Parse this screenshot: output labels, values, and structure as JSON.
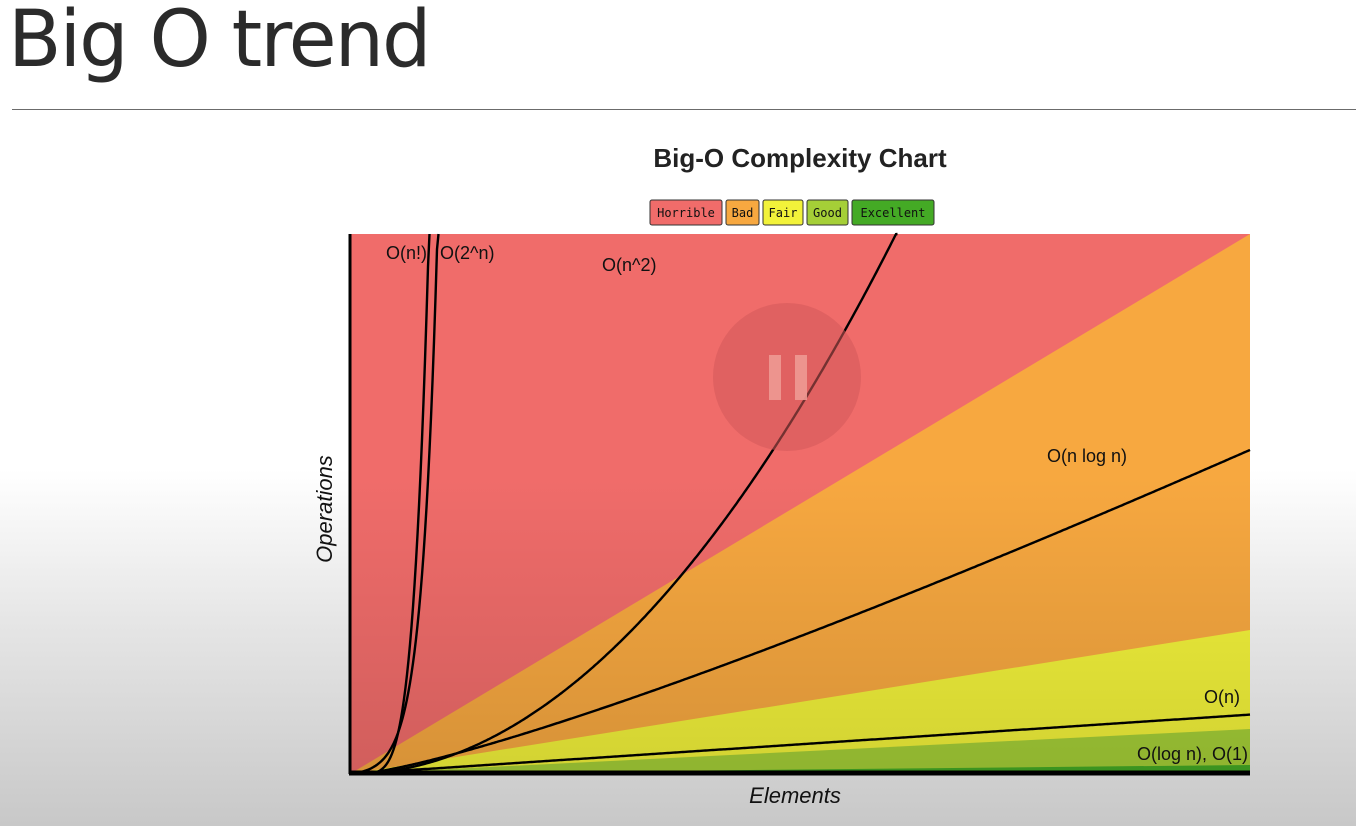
{
  "slide": {
    "title": "Big O trend"
  },
  "chart_data": {
    "type": "area",
    "title": "Big-O Complexity Chart",
    "xlabel": "Elements",
    "ylabel": "Operations",
    "xlim": [
      0,
      100
    ],
    "ylim": [
      0,
      60
    ],
    "grid": false,
    "legend_placement": "top",
    "legend": [
      {
        "label": "Horrible",
        "color": "#f06c6a"
      },
      {
        "label": "Bad",
        "color": "#f7a840"
      },
      {
        "label": "Fair",
        "color": "#f2f23a"
      },
      {
        "label": "Good",
        "color": "#a5cf37"
      },
      {
        "label": "Excellent",
        "color": "#44aa25"
      }
    ],
    "regions": [
      {
        "name": "Horrible",
        "upper_slope": null,
        "color": "#f06c6a"
      },
      {
        "name": "Bad",
        "upper_slope": 0.6,
        "color": "#f7a840"
      },
      {
        "name": "Fair",
        "upper_slope": 0.16,
        "color": "#f2f23a"
      },
      {
        "name": "Good",
        "upper_slope": 0.05,
        "color": "#a5cf37"
      },
      {
        "name": "Excellent",
        "upper_slope": 0.01,
        "color": "#44aa25"
      }
    ],
    "series": [
      {
        "name": "O(n!)",
        "label": "O(n!)"
      },
      {
        "name": "O(2^n)",
        "label": "O(2^n)"
      },
      {
        "name": "O(n^2)",
        "label": "O(n^2)"
      },
      {
        "name": "O(n log n)",
        "label": "O(n log n)"
      },
      {
        "name": "O(n)",
        "label": "O(n)"
      },
      {
        "name": "O(log n), O(1)",
        "label": "O(log n), O(1)"
      }
    ]
  }
}
